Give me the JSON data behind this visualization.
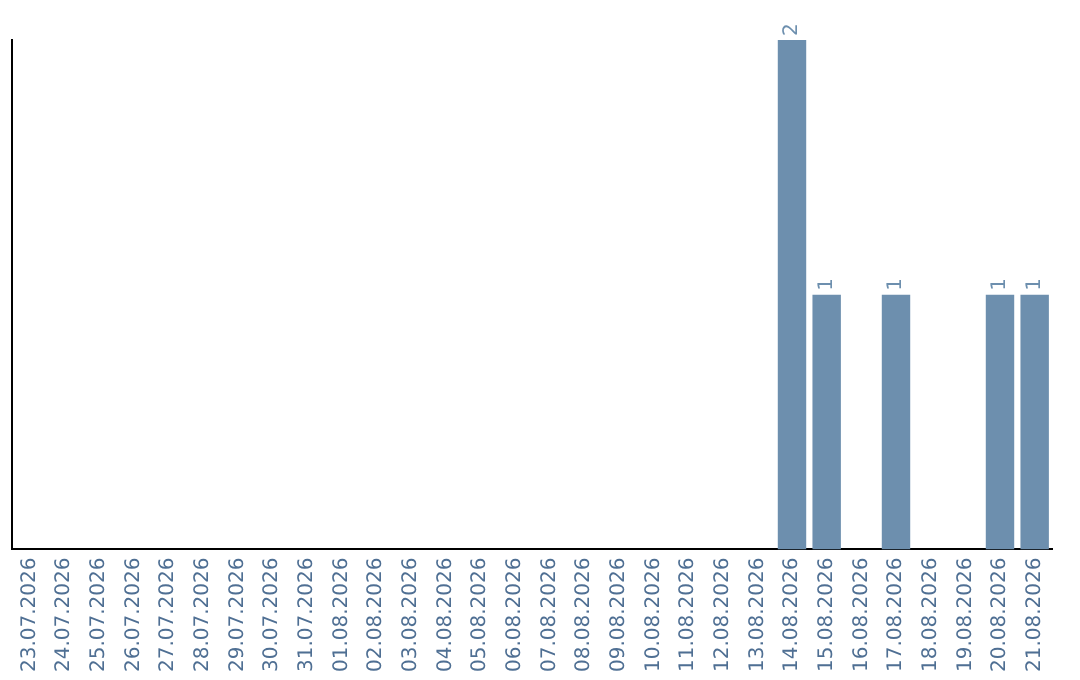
{
  "chart_data": {
    "type": "bar",
    "categories": [
      "23.07.2026",
      "24.07.2026",
      "25.07.2026",
      "26.07.2026",
      "27.07.2026",
      "28.07.2026",
      "29.07.2026",
      "30.07.2026",
      "31.07.2026",
      "01.08.2026",
      "02.08.2026",
      "03.08.2026",
      "04.08.2026",
      "05.08.2026",
      "06.08.2026",
      "07.08.2026",
      "08.08.2026",
      "09.08.2026",
      "10.08.2026",
      "11.08.2026",
      "12.08.2026",
      "13.08.2026",
      "14.08.2026",
      "15.08.2026",
      "16.08.2026",
      "17.08.2026",
      "18.08.2026",
      "19.08.2026",
      "20.08.2026",
      "21.08.2026"
    ],
    "values": [
      null,
      null,
      null,
      null,
      null,
      null,
      null,
      null,
      null,
      null,
      null,
      null,
      null,
      null,
      null,
      null,
      null,
      null,
      null,
      null,
      null,
      null,
      2,
      1,
      null,
      1,
      null,
      null,
      1,
      1
    ],
    "value_labels": [
      null,
      null,
      null,
      null,
      null,
      null,
      null,
      null,
      null,
      null,
      null,
      null,
      null,
      null,
      null,
      null,
      null,
      null,
      null,
      null,
      null,
      null,
      "2",
      "1",
      null,
      "1",
      null,
      null,
      "1",
      "1"
    ],
    "color": "#6d8fae",
    "relative": false,
    "grid": false,
    "legend": false,
    "tick_labels": "x"
  }
}
